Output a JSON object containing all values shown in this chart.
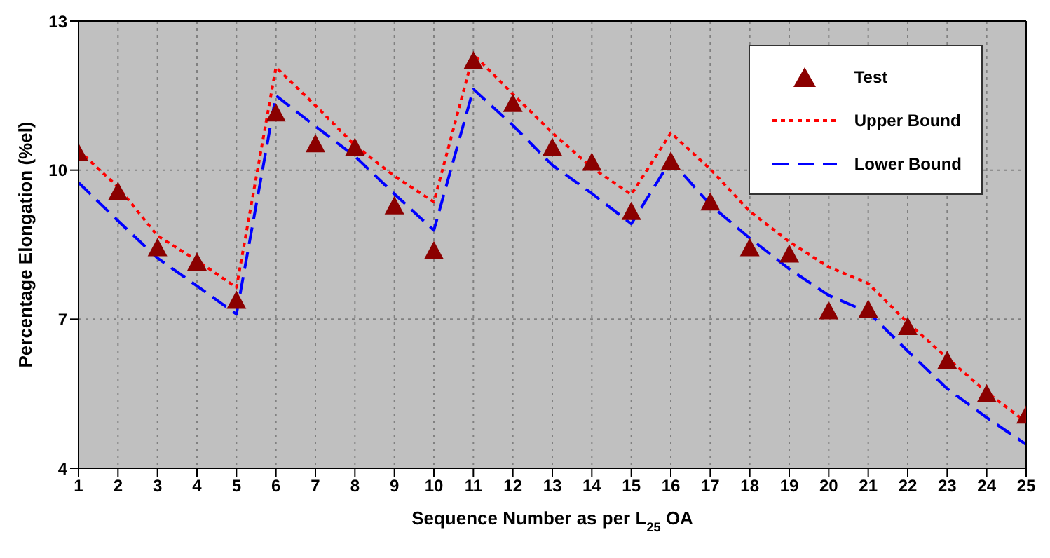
{
  "chart_data": {
    "type": "line",
    "xlabel": "Sequence Number as per L$_{25}$ OA",
    "ylabel": "Percentage Elongation (%el)",
    "x": [
      1,
      2,
      3,
      4,
      5,
      6,
      7,
      8,
      9,
      10,
      11,
      12,
      13,
      14,
      15,
      16,
      17,
      18,
      19,
      20,
      21,
      22,
      23,
      24,
      25
    ],
    "series": [
      {
        "name": "Test",
        "type": "scatter",
        "marker": "triangle",
        "color": "#8b0000",
        "values": [
          10.32,
          9.54,
          8.41,
          8.12,
          7.35,
          11.12,
          10.5,
          10.43,
          9.25,
          8.35,
          12.17,
          11.31,
          10.43,
          10.13,
          9.14,
          10.15,
          9.33,
          8.41,
          8.28,
          7.14,
          7.17,
          6.82,
          6.14,
          5.47,
          5.04
        ]
      },
      {
        "name": "Upper Bound",
        "line_style": "dotted",
        "marker": "none",
        "color": "#ff0000",
        "values": [
          10.4,
          9.66,
          8.68,
          8.18,
          7.64,
          12.07,
          11.3,
          10.5,
          9.88,
          9.36,
          12.33,
          11.53,
          10.75,
          10.05,
          9.51,
          10.75,
          10.02,
          9.17,
          8.56,
          8.05,
          7.72,
          6.93,
          6.22,
          5.53,
          4.93
        ]
      },
      {
        "name": "Lower Bound",
        "line_style": "dashed",
        "marker": "none",
        "color": "#0000ff",
        "values": [
          9.75,
          8.98,
          8.23,
          7.67,
          7.1,
          11.5,
          10.88,
          10.28,
          9.52,
          8.79,
          11.63,
          10.9,
          10.1,
          9.53,
          8.92,
          10.2,
          9.3,
          8.63,
          8.01,
          7.48,
          7.14,
          6.36,
          5.6,
          5.02,
          4.48
        ]
      }
    ],
    "xlim": [
      1,
      25
    ],
    "xticks": [
      1,
      2,
      3,
      4,
      5,
      6,
      7,
      8,
      9,
      10,
      11,
      12,
      13,
      14,
      15,
      16,
      17,
      18,
      19,
      20,
      21,
      22,
      23,
      24,
      25
    ],
    "ylim": [
      4,
      13
    ],
    "yticks": [
      4,
      7,
      10,
      13
    ],
    "grid": true,
    "legend": "top right"
  }
}
